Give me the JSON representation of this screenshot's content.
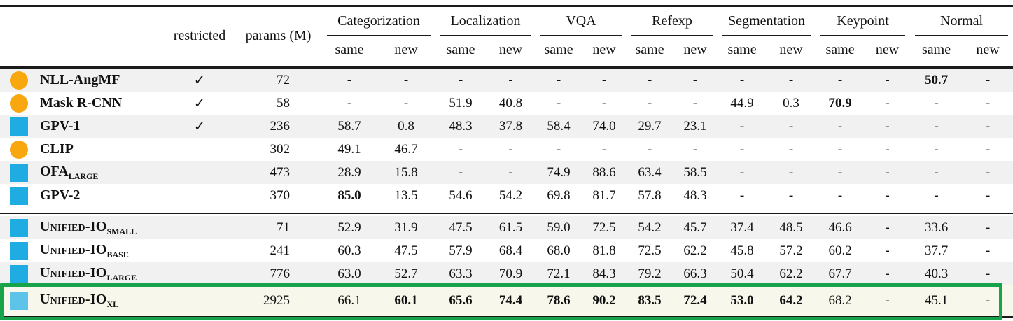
{
  "colors": {
    "marker_orange": "#F8A80E",
    "marker_blue": "#1EACE3",
    "marker_lightblue": "#5EC3E9",
    "stripe_gray": "#F1F1F1",
    "highlight_row_bg": "#F7F7EB",
    "highlight_green": "#17A34A",
    "rule_black": "#1A1A1A"
  },
  "table": {
    "glyphs": {
      "check": "✓",
      "empty": "-"
    },
    "header": {
      "restricted_label": "restricted",
      "params_label": "params (M)",
      "groups": [
        "Categorization",
        "Localization",
        "VQA",
        "Refexp",
        "Segmentation",
        "Keypoint",
        "Normal"
      ],
      "subcolumns": [
        "same",
        "new"
      ]
    },
    "sections": [
      {
        "rows": [
          {
            "model": "NLL-AngMF",
            "smallcaps": false,
            "sub": "",
            "marker": {
              "shape": "circle",
              "color": "#F8A80E"
            },
            "restricted": true,
            "params": "72",
            "values": [
              "-",
              "-",
              "-",
              "-",
              "-",
              "-",
              "-",
              "-",
              "-",
              "-",
              "-",
              "-",
              "50.7",
              "-"
            ],
            "bold_indices": [
              12
            ],
            "highlight": false
          },
          {
            "model": "Mask R-CNN",
            "smallcaps": false,
            "sub": "",
            "marker": {
              "shape": "circle",
              "color": "#F8A80E"
            },
            "restricted": true,
            "params": "58",
            "values": [
              "-",
              "-",
              "51.9",
              "40.8",
              "-",
              "-",
              "-",
              "-",
              "44.9",
              "0.3",
              "70.9",
              "-",
              "-",
              "-"
            ],
            "bold_indices": [
              10
            ],
            "highlight": false
          },
          {
            "model": "GPV-1",
            "smallcaps": false,
            "sub": "",
            "marker": {
              "shape": "square",
              "color": "#1EACE3"
            },
            "restricted": true,
            "params": "236",
            "values": [
              "58.7",
              "0.8",
              "48.3",
              "37.8",
              "58.4",
              "74.0",
              "29.7",
              "23.1",
              "-",
              "-",
              "-",
              "-",
              "-",
              "-"
            ],
            "bold_indices": [],
            "highlight": false
          },
          {
            "model": "CLIP",
            "smallcaps": false,
            "sub": "",
            "marker": {
              "shape": "circle",
              "color": "#F8A80E"
            },
            "restricted": false,
            "params": "302",
            "values": [
              "49.1",
              "46.7",
              "-",
              "-",
              "-",
              "-",
              "-",
              "-",
              "-",
              "-",
              "-",
              "-",
              "-",
              "-"
            ],
            "bold_indices": [],
            "highlight": false
          },
          {
            "model": "OFA",
            "smallcaps": false,
            "sub": "LARGE",
            "marker": {
              "shape": "square",
              "color": "#1EACE3"
            },
            "restricted": false,
            "params": "473",
            "values": [
              "28.9",
              "15.8",
              "-",
              "-",
              "74.9",
              "88.6",
              "63.4",
              "58.5",
              "-",
              "-",
              "-",
              "-",
              "-",
              "-"
            ],
            "bold_indices": [],
            "highlight": false
          },
          {
            "model": "GPV-2",
            "smallcaps": false,
            "sub": "",
            "marker": {
              "shape": "square",
              "color": "#1EACE3"
            },
            "restricted": false,
            "params": "370",
            "values": [
              "85.0",
              "13.5",
              "54.6",
              "54.2",
              "69.8",
              "81.7",
              "57.8",
              "48.3",
              "-",
              "-",
              "-",
              "-",
              "-",
              "-"
            ],
            "bold_indices": [
              0
            ],
            "highlight": false
          }
        ]
      },
      {
        "rows": [
          {
            "model": "Unified-IO",
            "smallcaps": true,
            "sub": "SMALL",
            "marker": {
              "shape": "square",
              "color": "#1EACE3"
            },
            "restricted": false,
            "params": "71",
            "values": [
              "52.9",
              "31.9",
              "47.5",
              "61.5",
              "59.0",
              "72.5",
              "54.2",
              "45.7",
              "37.4",
              "48.5",
              "46.6",
              "-",
              "33.6",
              "-"
            ],
            "bold_indices": [],
            "highlight": false
          },
          {
            "model": "Unified-IO",
            "smallcaps": true,
            "sub": "BASE",
            "marker": {
              "shape": "square",
              "color": "#1EACE3"
            },
            "restricted": false,
            "params": "241",
            "values": [
              "60.3",
              "47.5",
              "57.9",
              "68.4",
              "68.0",
              "81.8",
              "72.5",
              "62.2",
              "45.8",
              "57.2",
              "60.2",
              "-",
              "37.7",
              "-"
            ],
            "bold_indices": [],
            "highlight": false
          },
          {
            "model": "Unified-IO",
            "smallcaps": true,
            "sub": "LARGE",
            "marker": {
              "shape": "square",
              "color": "#1EACE3"
            },
            "restricted": false,
            "params": "776",
            "values": [
              "63.0",
              "52.7",
              "63.3",
              "70.9",
              "72.1",
              "84.3",
              "79.2",
              "66.3",
              "50.4",
              "62.2",
              "67.7",
              "-",
              "40.3",
              "-"
            ],
            "bold_indices": [],
            "highlight": false
          },
          {
            "model": "Unified-IO",
            "smallcaps": true,
            "sub": "XL",
            "marker": {
              "shape": "square",
              "color": "#5EC3E9"
            },
            "restricted": false,
            "params": "2925",
            "values": [
              "66.1",
              "60.1",
              "65.6",
              "74.4",
              "78.6",
              "90.2",
              "83.5",
              "72.4",
              "53.0",
              "64.2",
              "68.2",
              "-",
              "45.1",
              "-"
            ],
            "bold_indices": [
              1,
              2,
              3,
              4,
              5,
              6,
              7,
              8,
              9
            ],
            "highlight": true
          }
        ]
      }
    ]
  }
}
